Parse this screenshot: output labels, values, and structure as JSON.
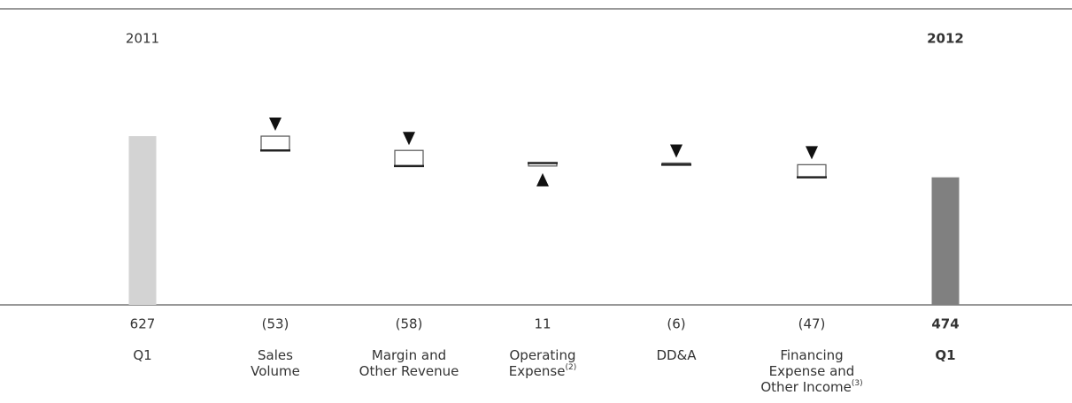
{
  "chart_data": {
    "type": "waterfall",
    "period_labels": [
      "2011",
      "2012"
    ],
    "categories": [
      "Q1",
      "Sales\nVolume",
      "Margin and\nOther Revenue",
      "Operating\nExpense",
      "DD&A",
      "Financing\nExpense and\nOther Income",
      "Q1"
    ],
    "category_notes": [
      null,
      null,
      null,
      "(2)",
      null,
      "(3)",
      null
    ],
    "values": [
      627,
      -53,
      -58,
      11,
      -6,
      -47,
      474
    ],
    "value_labels": [
      "627",
      "(53)",
      "(58)",
      "11",
      "(6)",
      "(47)",
      "474"
    ],
    "start_color": "#d3d3d3",
    "end_color": "#808080",
    "ylim": [
      0,
      1100
    ]
  }
}
